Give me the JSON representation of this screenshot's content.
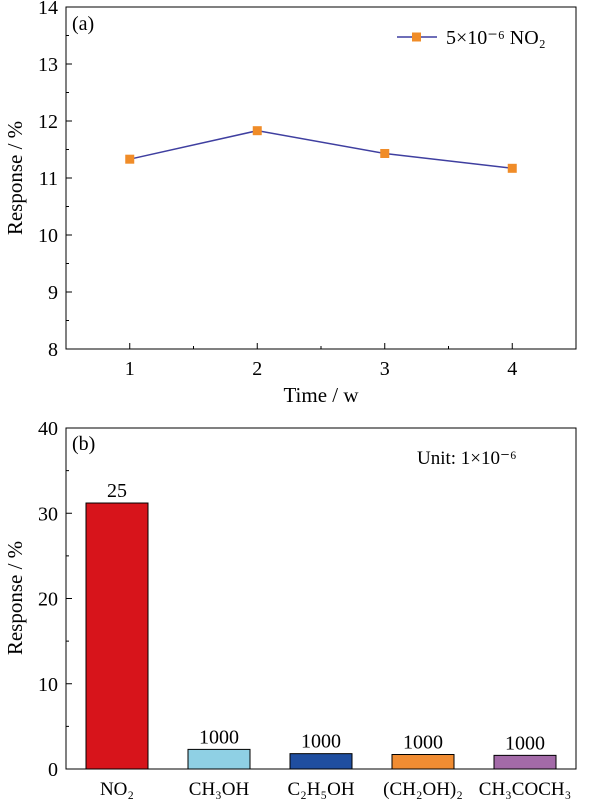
{
  "chart_data": [
    {
      "type": "line",
      "panel_label": "(a)",
      "xlabel": "Time / w",
      "ylabel": "Response / %",
      "xlim": [
        0.5,
        4.5
      ],
      "ylim": [
        8,
        14
      ],
      "xticks": [
        "1",
        "2",
        "3",
        "4"
      ],
      "yticks": [
        "8",
        "9",
        "10",
        "11",
        "12",
        "13",
        "14"
      ],
      "legend_position": "top-right",
      "series": [
        {
          "name": "5×10⁻⁶ NO₂",
          "color": "#3f3fa0",
          "marker_color": "#f08c28",
          "x": [
            1,
            2,
            3,
            4
          ],
          "y": [
            11.33,
            11.83,
            11.43,
            11.17
          ]
        }
      ]
    },
    {
      "type": "bar",
      "panel_label": "(b)",
      "ylabel": "Response / %",
      "ylim": [
        0,
        40
      ],
      "yticks": [
        "0",
        "10",
        "20",
        "30",
        "40"
      ],
      "annotation": "Unit: 1×10⁻⁶",
      "categories": [
        "NO₂",
        "CH₃OH",
        "C₂H₅OH",
        "(CH₂OH)₂",
        "CH₃COCH₃"
      ],
      "values": [
        31.2,
        2.3,
        1.8,
        1.7,
        1.6
      ],
      "data_labels": [
        "25",
        "1000",
        "1000",
        "1000",
        "1000"
      ],
      "colors": [
        "#d7141b",
        "#8fd0e4",
        "#1f4ea0",
        "#f08c32",
        "#a36aa8"
      ]
    }
  ]
}
